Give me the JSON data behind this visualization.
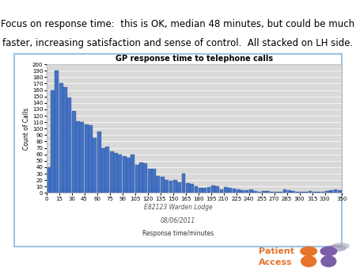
{
  "title": "GP response time to telephone calls",
  "subtitle_line1": "E82123 Warden Lodge",
  "subtitle_line2": "08/06/2011",
  "xlabel": "Response time/minutes",
  "ylabel": "Count of Calls",
  "ylim": [
    0,
    200
  ],
  "yticks": [
    0,
    10,
    20,
    30,
    40,
    50,
    60,
    70,
    80,
    90,
    100,
    110,
    120,
    130,
    140,
    150,
    160,
    170,
    180,
    190,
    200
  ],
  "xtick_labels": [
    "0",
    "15",
    "30",
    "45",
    "60",
    "75",
    "90",
    "105",
    "120",
    "135",
    "150",
    "165",
    "180",
    "195",
    "210",
    "225",
    "240",
    "255",
    "270",
    "285",
    "300",
    "315",
    "330",
    "350"
  ],
  "xtick_positions": [
    0,
    15,
    30,
    45,
    60,
    75,
    90,
    105,
    120,
    135,
    150,
    165,
    180,
    195,
    210,
    225,
    240,
    255,
    270,
    285,
    300,
    315,
    330,
    350
  ],
  "bar_color": "#4472C4",
  "bar_edge_color": "#2F5597",
  "plot_bg_color": "#D9D9D9",
  "header_text_line1": "Focus on response time:  this is OK, median 48 minutes, but could be much",
  "header_text_line2": "faster, increasing satisfaction and sense of control.  All stacked on LH side.",
  "bar_values": [
    40,
    160,
    190,
    170,
    165,
    148,
    128,
    112,
    110,
    107,
    105,
    85,
    95,
    70,
    72,
    65,
    62,
    60,
    57,
    55,
    60,
    44,
    47,
    46,
    38,
    37,
    26,
    25,
    20,
    19,
    20,
    16,
    30,
    15,
    14,
    10,
    8,
    8,
    9,
    11,
    10,
    5,
    9,
    8,
    7,
    5,
    4,
    4,
    5,
    3,
    2,
    3,
    3,
    2,
    2,
    2,
    5,
    4,
    3,
    2,
    2,
    2,
    3,
    2,
    2,
    2,
    3,
    4,
    5,
    4
  ],
  "num_bars": 70,
  "x_end": 350,
  "title_fontsize": 7,
  "axis_fontsize": 5.5,
  "tick_fontsize": 5,
  "header_fontsize": 8.5,
  "subtitle_fontsize": 5.5,
  "border_color": "#9DC3E6",
  "logo_orange": "#E8732A",
  "logo_purple": "#7B5EA7",
  "logo_text_color": "#E8732A"
}
